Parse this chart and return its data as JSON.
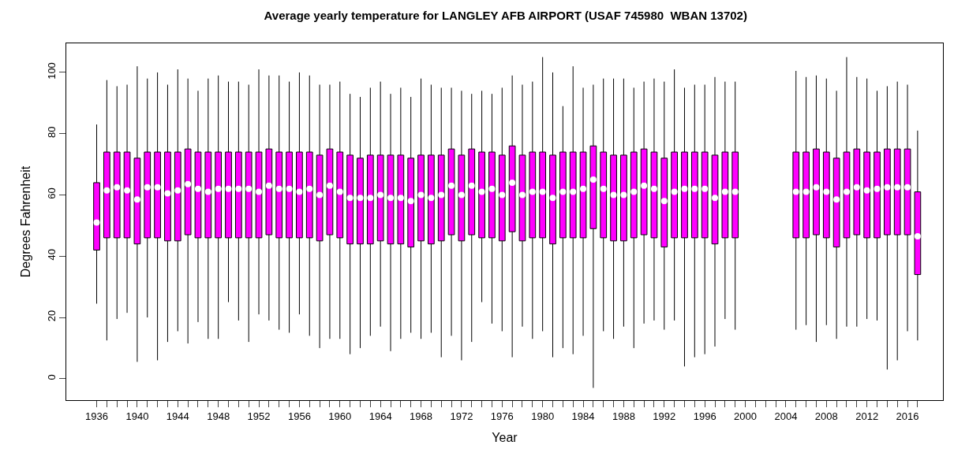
{
  "chart_data": {
    "type": "box",
    "title": "Average yearly temperature for LANGLEY AFB AIRPORT (USAF 745980  WBAN 13702)",
    "xlabel": "Year",
    "ylabel": "Degrees Fahrenheit",
    "x": [
      1936,
      1937,
      1938,
      1939,
      1940,
      1941,
      1942,
      1943,
      1944,
      1945,
      1946,
      1947,
      1948,
      1949,
      1950,
      1951,
      1952,
      1953,
      1954,
      1955,
      1956,
      1957,
      1958,
      1959,
      1960,
      1961,
      1962,
      1963,
      1964,
      1965,
      1966,
      1967,
      1968,
      1969,
      1970,
      1971,
      1972,
      1973,
      1974,
      1975,
      1976,
      1977,
      1978,
      1979,
      1980,
      1981,
      1982,
      1983,
      1984,
      1985,
      1986,
      1987,
      1988,
      1989,
      1990,
      1991,
      1992,
      1993,
      1994,
      1995,
      1996,
      1997,
      1998,
      1999,
      2005,
      2006,
      2007,
      2008,
      2009,
      2010,
      2011,
      2012,
      2013,
      2014,
      2015,
      2016,
      2017
    ],
    "series": [
      {
        "color": "#ff00ff",
        "boxes": [
          {
            "low": 24.5,
            "q1": 42,
            "median": 51,
            "q3": 64,
            "high": 83
          },
          {
            "low": 12.5,
            "q1": 46,
            "median": 61.5,
            "q3": 74,
            "high": 97.5
          },
          {
            "low": 19.5,
            "q1": 46,
            "median": 62.5,
            "q3": 74,
            "high": 95.5
          },
          {
            "low": 21.5,
            "q1": 46,
            "median": 61.5,
            "q3": 74,
            "high": 96
          },
          {
            "low": 5.5,
            "q1": 44,
            "median": 58.5,
            "q3": 72,
            "high": 102
          },
          {
            "low": 20,
            "q1": 46,
            "median": 62.5,
            "q3": 74,
            "high": 98
          },
          {
            "low": 6,
            "q1": 46,
            "median": 62.5,
            "q3": 74,
            "high": 100
          },
          {
            "low": 12,
            "q1": 45,
            "median": 60.5,
            "q3": 74,
            "high": 96
          },
          {
            "low": 15.5,
            "q1": 45,
            "median": 61.5,
            "q3": 74,
            "high": 101
          },
          {
            "low": 11.5,
            "q1": 47,
            "median": 63.5,
            "q3": 75,
            "high": 98
          },
          {
            "low": 18.5,
            "q1": 46,
            "median": 62,
            "q3": 74,
            "high": 94
          },
          {
            "low": 13,
            "q1": 46,
            "median": 61,
            "q3": 74,
            "high": 98
          },
          {
            "low": 13,
            "q1": 46,
            "median": 62,
            "q3": 74,
            "high": 99
          },
          {
            "low": 25,
            "q1": 46,
            "median": 62,
            "q3": 74,
            "high": 97
          },
          {
            "low": 19,
            "q1": 46,
            "median": 62,
            "q3": 74,
            "high": 97
          },
          {
            "low": 12,
            "q1": 46,
            "median": 62,
            "q3": 74,
            "high": 96
          },
          {
            "low": 21,
            "q1": 46,
            "median": 61,
            "q3": 74,
            "high": 101
          },
          {
            "low": 19,
            "q1": 47,
            "median": 63,
            "q3": 75,
            "high": 99
          },
          {
            "low": 16,
            "q1": 46,
            "median": 62,
            "q3": 74,
            "high": 99
          },
          {
            "low": 15,
            "q1": 46,
            "median": 62,
            "q3": 74,
            "high": 97
          },
          {
            "low": 21,
            "q1": 46,
            "median": 61,
            "q3": 74,
            "high": 100
          },
          {
            "low": 14,
            "q1": 46,
            "median": 62,
            "q3": 74,
            "high": 99
          },
          {
            "low": 10,
            "q1": 45,
            "median": 60,
            "q3": 73,
            "high": 96
          },
          {
            "low": 13,
            "q1": 47,
            "median": 63,
            "q3": 75,
            "high": 96
          },
          {
            "low": 13,
            "q1": 46,
            "median": 61,
            "q3": 74,
            "high": 97
          },
          {
            "low": 8,
            "q1": 44,
            "median": 59,
            "q3": 73,
            "high": 93
          },
          {
            "low": 10,
            "q1": 44,
            "median": 59,
            "q3": 72,
            "high": 92
          },
          {
            "low": 14,
            "q1": 44,
            "median": 59,
            "q3": 73,
            "high": 95
          },
          {
            "low": 17,
            "q1": 45,
            "median": 60,
            "q3": 73,
            "high": 97
          },
          {
            "low": 9,
            "q1": 44,
            "median": 59,
            "q3": 73,
            "high": 93
          },
          {
            "low": 13,
            "q1": 44,
            "median": 59,
            "q3": 73,
            "high": 95
          },
          {
            "low": 15,
            "q1": 43,
            "median": 58,
            "q3": 72,
            "high": 92
          },
          {
            "low": 13,
            "q1": 45,
            "median": 60,
            "q3": 73,
            "high": 98
          },
          {
            "low": 15,
            "q1": 44,
            "median": 59,
            "q3": 73,
            "high": 96
          },
          {
            "low": 7,
            "q1": 45,
            "median": 60,
            "q3": 73,
            "high": 95
          },
          {
            "low": 14,
            "q1": 47,
            "median": 63,
            "q3": 75,
            "high": 95
          },
          {
            "low": 6,
            "q1": 45,
            "median": 60,
            "q3": 73,
            "high": 94
          },
          {
            "low": 12,
            "q1": 47,
            "median": 63,
            "q3": 75,
            "high": 93
          },
          {
            "low": 25,
            "q1": 46,
            "median": 61,
            "q3": 74,
            "high": 94
          },
          {
            "low": 18,
            "q1": 46,
            "median": 62,
            "q3": 74,
            "high": 93
          },
          {
            "low": 15.5,
            "q1": 45,
            "median": 60,
            "q3": 73,
            "high": 95
          },
          {
            "low": 7,
            "q1": 48,
            "median": 64,
            "q3": 76,
            "high": 99
          },
          {
            "low": 17,
            "q1": 45,
            "median": 60,
            "q3": 73,
            "high": 96
          },
          {
            "low": 13,
            "q1": 46,
            "median": 61,
            "q3": 74,
            "high": 97
          },
          {
            "low": 15.5,
            "q1": 46,
            "median": 61,
            "q3": 74,
            "high": 105
          },
          {
            "low": 7,
            "q1": 44,
            "median": 59,
            "q3": 73,
            "high": 100
          },
          {
            "low": 10,
            "q1": 46,
            "median": 61,
            "q3": 74,
            "high": 89
          },
          {
            "low": 8,
            "q1": 46,
            "median": 61,
            "q3": 74,
            "high": 102
          },
          {
            "low": 14,
            "q1": 46,
            "median": 62,
            "q3": 74,
            "high": 95
          },
          {
            "low": -3,
            "q1": 49,
            "median": 65,
            "q3": 76,
            "high": 96
          },
          {
            "low": 15.5,
            "q1": 46,
            "median": 62,
            "q3": 74,
            "high": 98
          },
          {
            "low": 13,
            "q1": 45,
            "median": 60,
            "q3": 73,
            "high": 98
          },
          {
            "low": 17,
            "q1": 45,
            "median": 60,
            "q3": 73,
            "high": 98
          },
          {
            "low": 10,
            "q1": 46,
            "median": 61,
            "q3": 74,
            "high": 95
          },
          {
            "low": 18,
            "q1": 47,
            "median": 63,
            "q3": 75,
            "high": 97
          },
          {
            "low": 19,
            "q1": 46,
            "median": 62,
            "q3": 74,
            "high": 98
          },
          {
            "low": 16,
            "q1": 43,
            "median": 58,
            "q3": 72,
            "high": 97
          },
          {
            "low": 19,
            "q1": 46,
            "median": 61,
            "q3": 74,
            "high": 101
          },
          {
            "low": 4,
            "q1": 46,
            "median": 62,
            "q3": 74,
            "high": 95
          },
          {
            "low": 7,
            "q1": 46,
            "median": 62,
            "q3": 74,
            "high": 96
          },
          {
            "low": 8,
            "q1": 46,
            "median": 62,
            "q3": 74,
            "high": 96
          },
          {
            "low": 10.5,
            "q1": 44,
            "median": 59,
            "q3": 73,
            "high": 98.5
          },
          {
            "low": 19.5,
            "q1": 46,
            "median": 61,
            "q3": 74,
            "high": 97
          },
          {
            "low": 16,
            "q1": 46,
            "median": 61,
            "q3": 74,
            "high": 97
          },
          {
            "low": 16,
            "q1": 46,
            "median": 61,
            "q3": 74,
            "high": 100.5
          },
          {
            "low": 17.5,
            "q1": 46,
            "median": 61,
            "q3": 74,
            "high": 98.5
          },
          {
            "low": 12,
            "q1": 47,
            "median": 62.5,
            "q3": 75,
            "high": 99
          },
          {
            "low": 17.5,
            "q1": 46,
            "median": 61,
            "q3": 74,
            "high": 98
          },
          {
            "low": 13,
            "q1": 43,
            "median": 58.5,
            "q3": 72,
            "high": 94
          },
          {
            "low": 17,
            "q1": 46,
            "median": 61,
            "q3": 74,
            "high": 105
          },
          {
            "low": 17,
            "q1": 47,
            "median": 62.5,
            "q3": 75,
            "high": 98.5
          },
          {
            "low": 19.5,
            "q1": 46,
            "median": 61.5,
            "q3": 74,
            "high": 98
          },
          {
            "low": 19,
            "q1": 46,
            "median": 62,
            "q3": 74,
            "high": 94
          },
          {
            "low": 3,
            "q1": 47,
            "median": 62.5,
            "q3": 75,
            "high": 95.5
          },
          {
            "low": 6,
            "q1": 47,
            "median": 62.5,
            "q3": 75,
            "high": 97
          },
          {
            "low": 15.5,
            "q1": 47,
            "median": 62.5,
            "q3": 75,
            "high": 96
          },
          {
            "low": 12.5,
            "q1": 34,
            "median": 46.5,
            "q3": 61,
            "high": 81
          }
        ]
      }
    ],
    "xlim": [
      1933,
      2019.5
    ],
    "ylim": [
      -7,
      109.5
    ],
    "xticks": [
      1936,
      {
        "value": 1937,
        "label": null
      },
      {
        "value": 1938,
        "label": null
      },
      {
        "value": 1939,
        "label": null
      },
      1940,
      {
        "value": 1941,
        "label": null
      },
      {
        "value": 1942,
        "label": null
      },
      {
        "value": 1943,
        "label": null
      },
      1944,
      {
        "value": 1945,
        "label": null
      },
      {
        "value": 1946,
        "label": null
      },
      {
        "value": 1947,
        "label": null
      },
      1948,
      {
        "value": 1949,
        "label": null
      },
      {
        "value": 1950,
        "label": null
      },
      {
        "value": 1951,
        "label": null
      },
      1952,
      {
        "value": 1953,
        "label": null
      },
      {
        "value": 1954,
        "label": null
      },
      {
        "value": 1955,
        "label": null
      },
      1956,
      {
        "value": 1957,
        "label": null
      },
      {
        "value": 1958,
        "label": null
      },
      {
        "value": 1959,
        "label": null
      },
      1960,
      {
        "value": 1961,
        "label": null
      },
      {
        "value": 1962,
        "label": null
      },
      {
        "value": 1963,
        "label": null
      },
      1964,
      {
        "value": 1965,
        "label": null
      },
      {
        "value": 1966,
        "label": null
      },
      {
        "value": 1967,
        "label": null
      },
      1968,
      {
        "value": 1969,
        "label": null
      },
      {
        "value": 1970,
        "label": null
      },
      {
        "value": 1971,
        "label": null
      },
      1972,
      {
        "value": 1973,
        "label": null
      },
      {
        "value": 1974,
        "label": null
      },
      {
        "value": 1975,
        "label": null
      },
      1976,
      {
        "value": 1977,
        "label": null
      },
      {
        "value": 1978,
        "label": null
      },
      {
        "value": 1979,
        "label": null
      },
      1980,
      {
        "value": 1981,
        "label": null
      },
      {
        "value": 1982,
        "label": null
      },
      {
        "value": 1983,
        "label": null
      },
      1984,
      {
        "value": 1985,
        "label": null
      },
      {
        "value": 1986,
        "label": null
      },
      {
        "value": 1987,
        "label": null
      },
      1988,
      {
        "value": 1989,
        "label": null
      },
      {
        "value": 1990,
        "label": null
      },
      {
        "value": 1991,
        "label": null
      },
      1992,
      {
        "value": 1993,
        "label": null
      },
      {
        "value": 1994,
        "label": null
      },
      {
        "value": 1995,
        "label": null
      },
      1996,
      {
        "value": 1997,
        "label": null
      },
      {
        "value": 1998,
        "label": null
      },
      {
        "value": 1999,
        "label": null
      },
      2000,
      {
        "value": 2001,
        "label": null
      },
      {
        "value": 2002,
        "label": null
      },
      {
        "value": 2003,
        "label": null
      },
      2004,
      {
        "value": 2005,
        "label": null
      },
      {
        "value": 2006,
        "label": null
      },
      {
        "value": 2007,
        "label": null
      },
      2008,
      {
        "value": 2009,
        "label": null
      },
      {
        "value": 2010,
        "label": null
      },
      {
        "value": 2011,
        "label": null
      },
      2012,
      {
        "value": 2013,
        "label": null
      },
      {
        "value": 2014,
        "label": null
      },
      {
        "value": 2015,
        "label": null
      },
      2016,
      {
        "value": 2017,
        "label": null
      }
    ],
    "yticks": [
      0,
      20,
      40,
      60,
      80,
      100
    ]
  }
}
